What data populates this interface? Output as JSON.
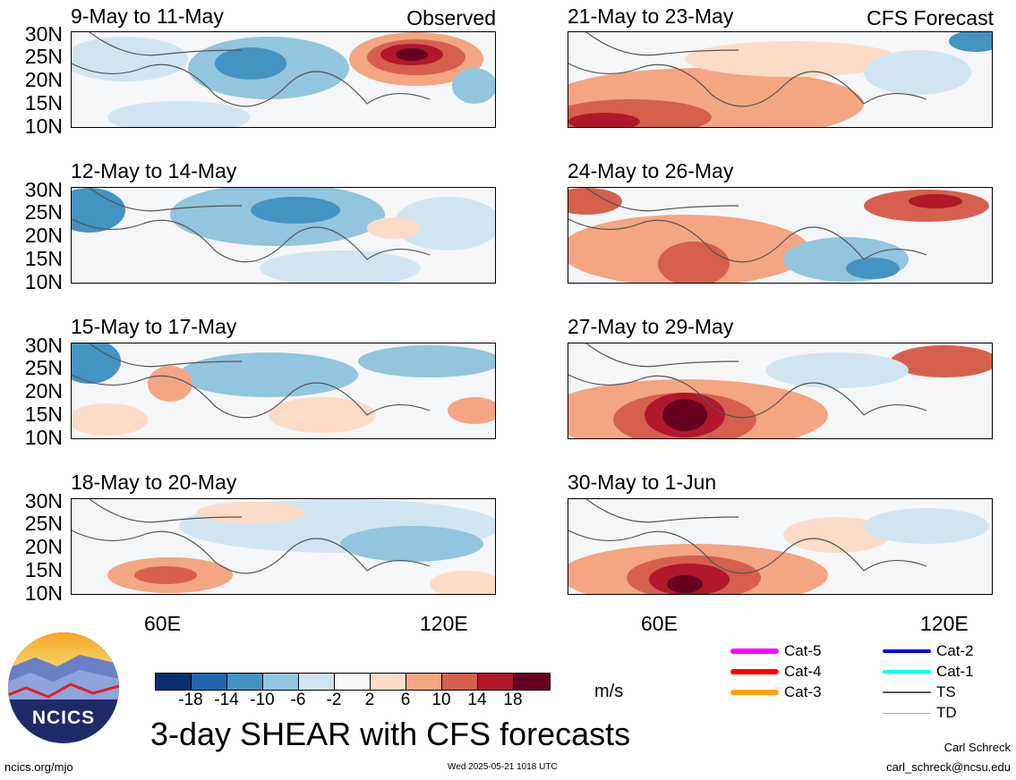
{
  "header": {
    "left_label": "Observed",
    "right_label": "CFS Forecast"
  },
  "panels": [
    {
      "title": "9-May to 11-May"
    },
    {
      "title": "12-May to 14-May"
    },
    {
      "title": "15-May to 17-May"
    },
    {
      "title": "18-May to 20-May"
    },
    {
      "title": "21-May to 23-May"
    },
    {
      "title": "24-May to 26-May"
    },
    {
      "title": "27-May to 29-May"
    },
    {
      "title": "30-May to 1-Jun"
    }
  ],
  "lat_labels": [
    "30N",
    "25N",
    "20N",
    "15N",
    "10N"
  ],
  "lon_labels": [
    "60E",
    "120E"
  ],
  "colorbar": {
    "colors": [
      "#08306b",
      "#2166ac",
      "#4393c3",
      "#92c5de",
      "#d1e5f0",
      "#f7f7f7",
      "#fddbc7",
      "#f4a582",
      "#d6604d",
      "#b2182b",
      "#67001f"
    ],
    "ticks": [
      "-18",
      "-14",
      "-10",
      "-6",
      "-2",
      "2",
      "6",
      "10",
      "14",
      "18"
    ],
    "units": "m/s"
  },
  "legend": [
    {
      "label": "Cat-5",
      "color": "#ff00ff",
      "width": 6
    },
    {
      "label": "Cat-4",
      "color": "#ff0000",
      "width": 6
    },
    {
      "label": "Cat-3",
      "color": "#ffa500",
      "width": 6
    },
    {
      "label": "Cat-2",
      "color": "#0000ff",
      "width": 4
    },
    {
      "label": "Cat-1",
      "color": "#00ffff",
      "width": 4
    },
    {
      "label": "TS",
      "color": "#555555",
      "width": 2
    },
    {
      "label": "TD",
      "color": "#aaaaaa",
      "width": 1
    }
  ],
  "logo": {
    "text": "NCICS"
  },
  "main_title": "3-day SHEAR with CFS forecasts",
  "footer": {
    "url": "ncics.org/mjo",
    "timestamp": "Wed 2025-05-21 1018 UTC",
    "author": "Carl Schreck",
    "email": "carl_schreck@ncsu.edu"
  }
}
